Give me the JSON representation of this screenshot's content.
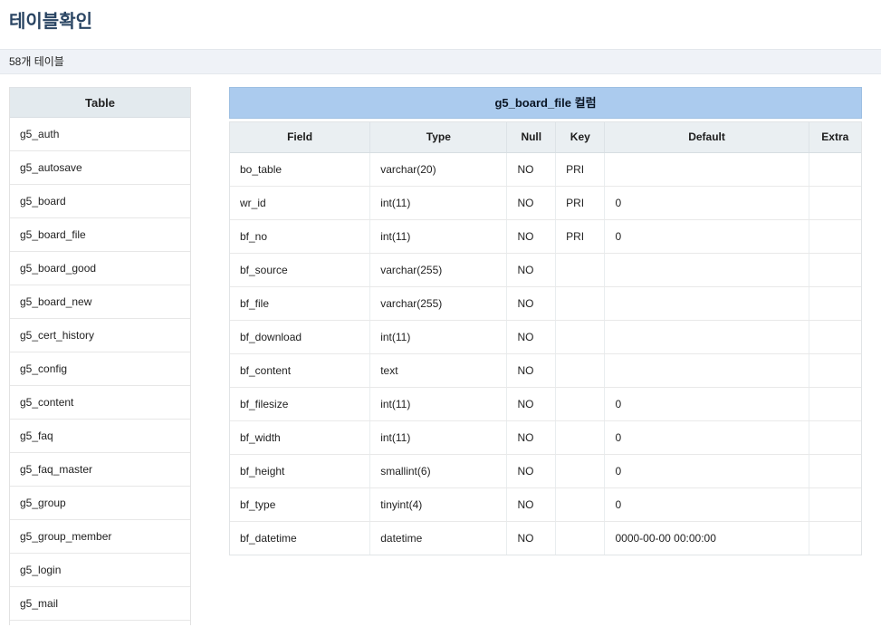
{
  "page": {
    "title": "테이블확인",
    "table_count": "58개 테이블"
  },
  "sidebar": {
    "header": "Table",
    "tables": [
      "g5_auth",
      "g5_autosave",
      "g5_board",
      "g5_board_file",
      "g5_board_good",
      "g5_board_new",
      "g5_cert_history",
      "g5_config",
      "g5_content",
      "g5_faq",
      "g5_faq_master",
      "g5_group",
      "g5_group_member",
      "g5_login",
      "g5_mail"
    ]
  },
  "main": {
    "caption": "g5_board_file 컬럼",
    "columns": [
      "Field",
      "Type",
      "Null",
      "Key",
      "Default",
      "Extra"
    ],
    "rows": [
      [
        "bo_table",
        "varchar(20)",
        "NO",
        "PRI",
        "",
        ""
      ],
      [
        "wr_id",
        "int(11)",
        "NO",
        "PRI",
        "0",
        ""
      ],
      [
        "bf_no",
        "int(11)",
        "NO",
        "PRI",
        "0",
        ""
      ],
      [
        "bf_source",
        "varchar(255)",
        "NO",
        "",
        "",
        ""
      ],
      [
        "bf_file",
        "varchar(255)",
        "NO",
        "",
        "",
        ""
      ],
      [
        "bf_download",
        "int(11)",
        "NO",
        "",
        "",
        ""
      ],
      [
        "bf_content",
        "text",
        "NO",
        "",
        "",
        ""
      ],
      [
        "bf_filesize",
        "int(11)",
        "NO",
        "",
        "0",
        ""
      ],
      [
        "bf_width",
        "int(11)",
        "NO",
        "",
        "0",
        ""
      ],
      [
        "bf_height",
        "smallint(6)",
        "NO",
        "",
        "0",
        ""
      ],
      [
        "bf_type",
        "tinyint(4)",
        "NO",
        "",
        "0",
        ""
      ],
      [
        "bf_datetime",
        "datetime",
        "NO",
        "",
        "0000-00-00 00:00:00",
        ""
      ]
    ]
  },
  "colors": {
    "caption_bg": "#abcbee",
    "caption_border": "#9dbfe2",
    "main_header_bg": "#eaeff2",
    "sidebar_header_bg": "#e3eaee",
    "count_bar_bg": "#eff2f7",
    "title_color": "#2a4563"
  }
}
